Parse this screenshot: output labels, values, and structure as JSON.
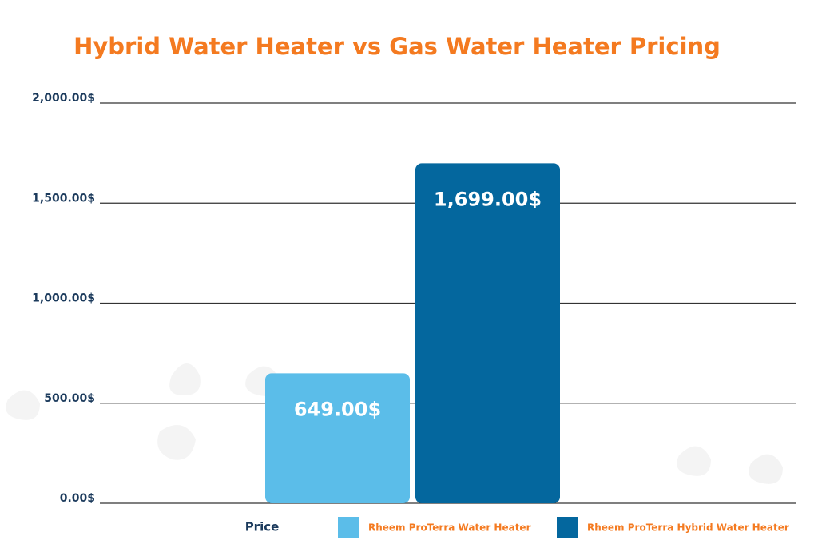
{
  "chart_data": {
    "type": "bar",
    "title": "Hybrid Water Heater vs Gas Water Heater Pricing",
    "categories": [
      "Price"
    ],
    "series": [
      {
        "name": "Rheem ProTerra Water Heater",
        "color": "#5bbde9",
        "values": [
          649
        ],
        "value_labels": [
          "649.00$"
        ]
      },
      {
        "name": "Rheem ProTerra Hybrid Water Heater",
        "color": "#04679e",
        "values": [
          1699
        ],
        "value_labels": [
          "1,699.00$"
        ]
      }
    ],
    "ylim": [
      0,
      2000
    ],
    "yticks": [
      {
        "value": 0,
        "label": "0.00$"
      },
      {
        "value": 500,
        "label": "500.00$"
      },
      {
        "value": 1000,
        "label": "1,000.00$"
      },
      {
        "value": 1500,
        "label": "1,500.00$"
      },
      {
        "value": 2000,
        "label": "2,000.00$"
      }
    ],
    "grid": true,
    "legend": "bottom"
  }
}
